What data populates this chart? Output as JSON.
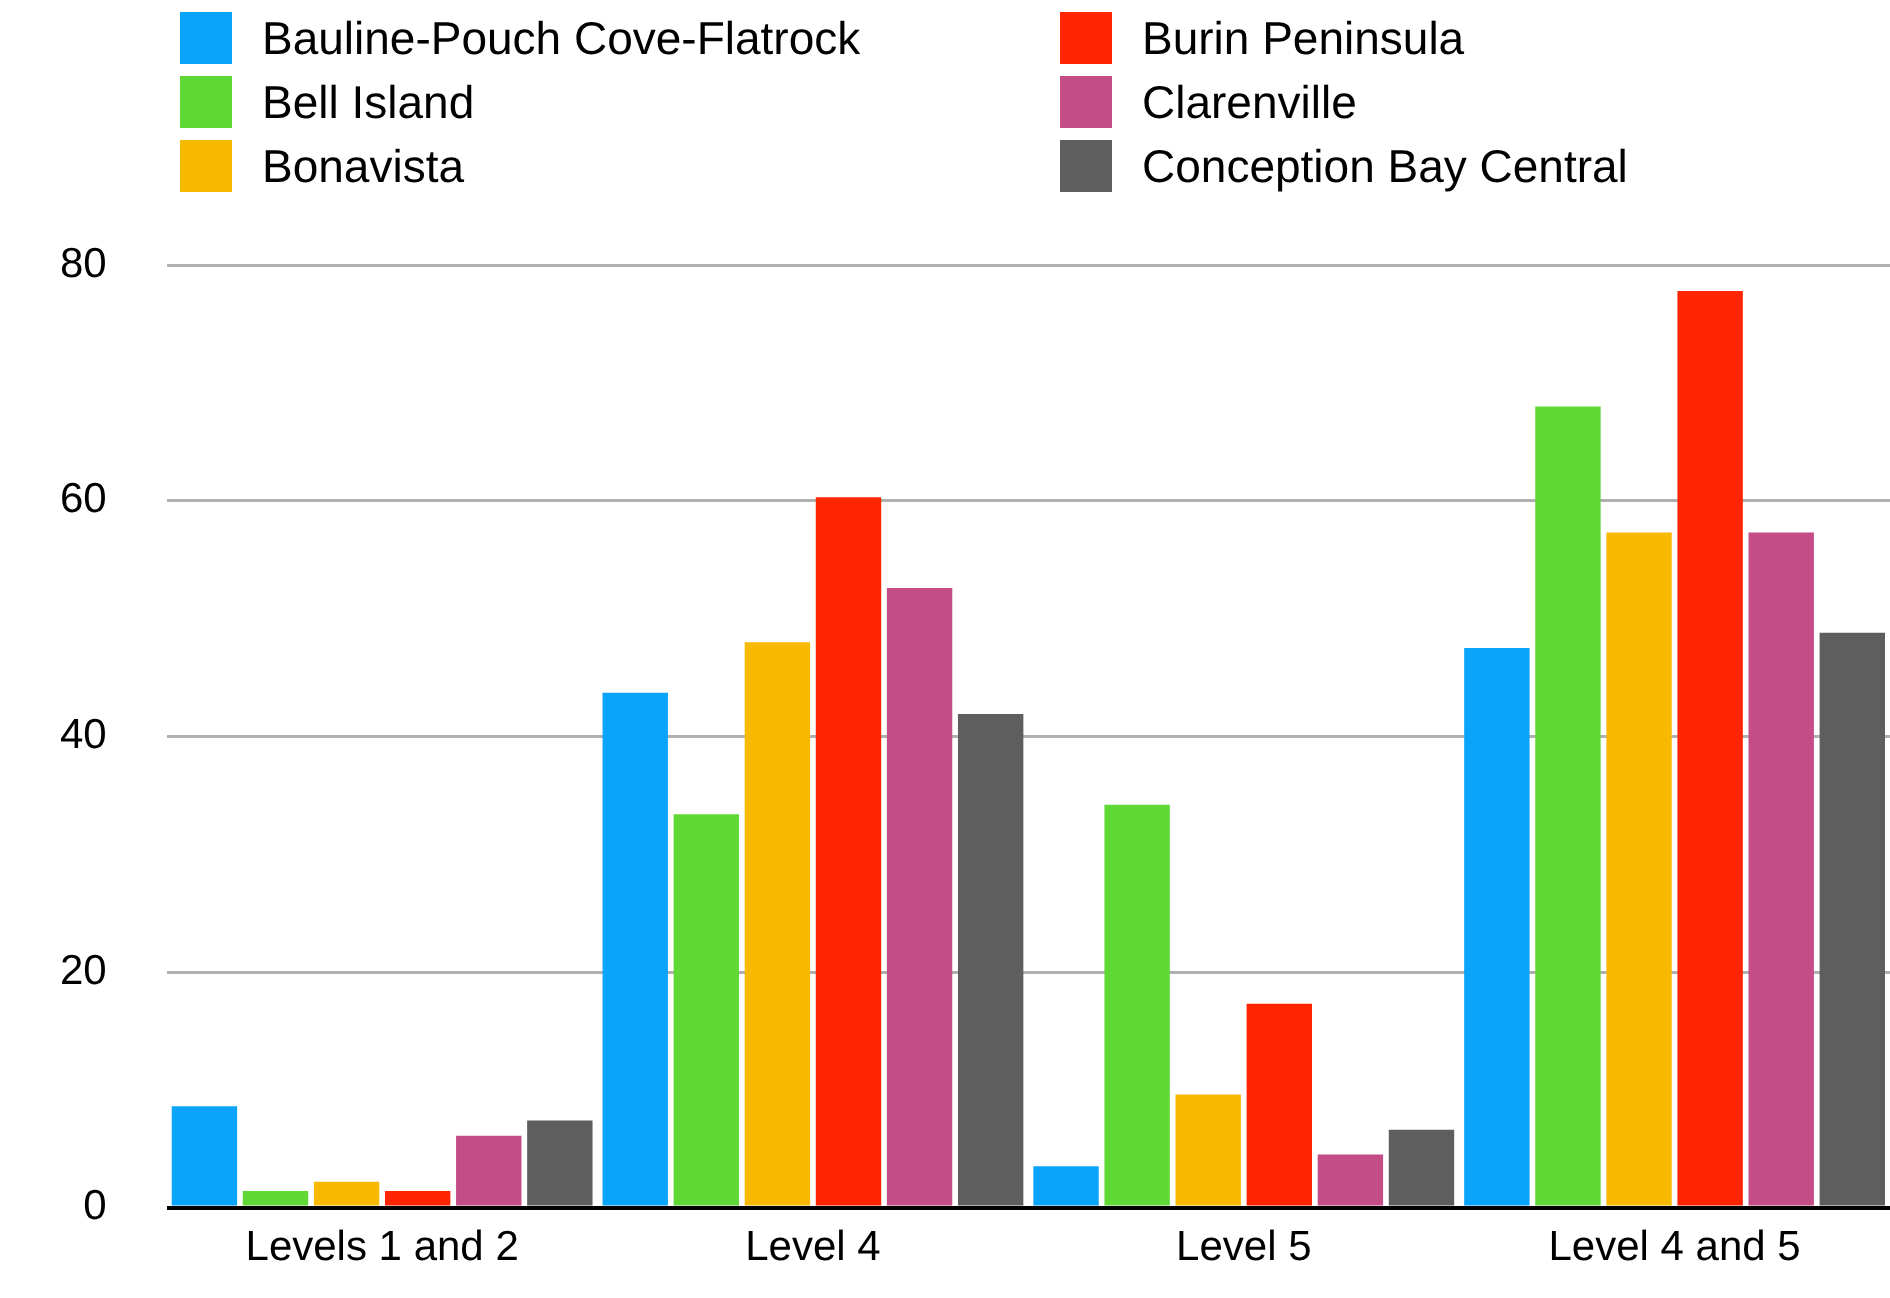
{
  "chart_data": {
    "type": "bar",
    "categories": [
      "Levels 1 and 2",
      "Level 4",
      "Level 5",
      "Level 4 and 5"
    ],
    "series": [
      {
        "name": "Bauline-Pouch Cove-Flatrock",
        "color": "#0ba4fb",
        "values": [
          8.6,
          43.7,
          3.5,
          47.5
        ]
      },
      {
        "name": "Bell Island",
        "color": "#60d937",
        "values": [
          1.4,
          33.4,
          34.2,
          68
        ]
      },
      {
        "name": "Bonavista",
        "color": "#f8ba00",
        "values": [
          2.2,
          48,
          9.6,
          57.3
        ]
      },
      {
        "name": "Burin Peninsula",
        "color": "#fe2500",
        "values": [
          1.4,
          60.3,
          17.3,
          77.8
        ]
      },
      {
        "name": "Clarenville",
        "color": "#c44d88",
        "values": [
          6.1,
          52.6,
          4.5,
          57.3
        ]
      },
      {
        "name": "Conception Bay Central",
        "color": "#5e5e5e",
        "values": [
          7.4,
          41.9,
          6.6,
          48.8
        ]
      }
    ],
    "ylim": [
      0,
      80
    ],
    "yticks": [
      0,
      20,
      40,
      60,
      80
    ],
    "grid": "y",
    "legend": "top"
  }
}
